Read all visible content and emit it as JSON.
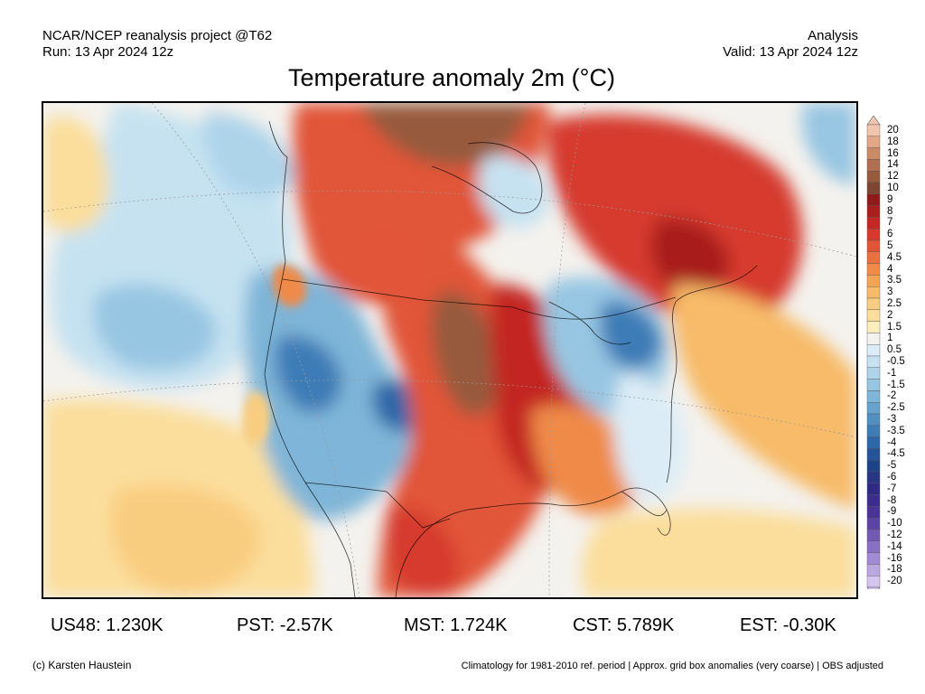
{
  "header": {
    "line1_left": "NCAR/NCEP reanalysis project @T62",
    "line2_left": "Run: 13 Apr 2024 12z",
    "line1_right": "Analysis",
    "line2_right": "Valid: 13 Apr 2024 12z"
  },
  "title": "Temperature anomaly 2m (°C)",
  "colorbar": {
    "labels": [
      "20",
      "18",
      "16",
      "14",
      "12",
      "10",
      "9",
      "8",
      "7",
      "6",
      "5",
      "4.5",
      "4",
      "3.5",
      "3",
      "2.5",
      "2",
      "1.5",
      "1",
      "0.5",
      "-0.5",
      "-1",
      "-1.5",
      "-2",
      "-2.5",
      "-3",
      "-3.5",
      "-4",
      "-4.5",
      "-5",
      "-6",
      "-7",
      "-8",
      "-9",
      "-10",
      "-12",
      "-14",
      "-16",
      "-18",
      "-20"
    ],
    "colors": [
      "#f2c6ae",
      "#e2a786",
      "#cb8a66",
      "#b0704f",
      "#975a3d",
      "#7d4630",
      "#8f1b1b",
      "#a81f1e",
      "#c32824",
      "#d63a2e",
      "#e15537",
      "#e9703f",
      "#ef8a48",
      "#f4a455",
      "#f7bb69",
      "#f9cd80",
      "#fbde9c",
      "#fdeebd",
      "#f4f2ee",
      "#dcecf6",
      "#c6e2f1",
      "#aed4ea",
      "#97c6e2",
      "#7fb5d8",
      "#68a3cd",
      "#5290c2",
      "#3e7cb6",
      "#2e67a8",
      "#245497",
      "#1d4386",
      "#283583",
      "#2e2a85",
      "#3b2c8e",
      "#4b3497",
      "#5d43a4",
      "#7358b4",
      "#8a70c5",
      "#a28ad5",
      "#bba6e2",
      "#d4c4ee"
    ]
  },
  "stats": [
    {
      "region": "US48",
      "value": "1.230K",
      "text": "US48: 1.230K"
    },
    {
      "region": "PST",
      "value": "-2.57K",
      "text": "PST: -2.57K"
    },
    {
      "region": "MST",
      "value": "1.724K",
      "text": "MST: 1.724K"
    },
    {
      "region": "CST",
      "value": "5.789K",
      "text": "CST: 5.789K"
    },
    {
      "region": "EST",
      "value": "-0.30K",
      "text": "EST: -0.30K"
    }
  ],
  "footer": {
    "left": "(c) Karsten Haustein",
    "right": "Climatology for 1981-2010 ref. period | Approx. grid box anomalies (very coarse) | OBS adjusted"
  }
}
